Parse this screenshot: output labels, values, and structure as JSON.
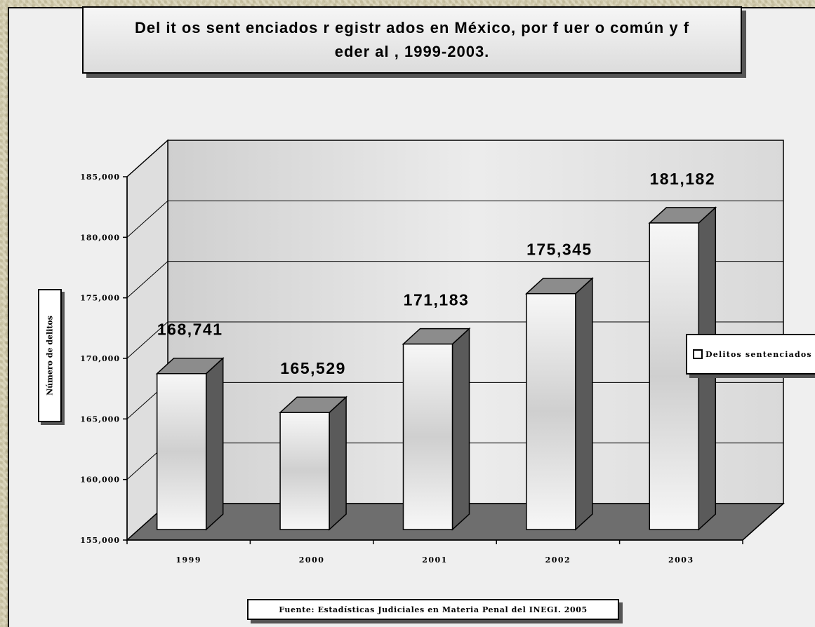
{
  "chart_data": {
    "type": "bar",
    "title": "Del it os sent enciados r egistr ados en México, por f uer o común y f eder al , 1999-2003.",
    "ylabel": "Número de delitos",
    "categories": [
      "1999",
      "2000",
      "2001",
      "2002",
      "2003"
    ],
    "series": [
      {
        "name": "Delitos sentenciados",
        "values": [
          168741,
          165529,
          171183,
          175345,
          181182
        ]
      }
    ],
    "value_labels": [
      "168,741",
      "165,529",
      "171,183",
      "175,345",
      "181,182"
    ],
    "ylim": [
      155000,
      185000
    ],
    "yticks": [
      155000,
      160000,
      165000,
      170000,
      175000,
      180000,
      185000
    ],
    "ytick_labels": [
      "155,000",
      "160,000",
      "165,000",
      "170,000",
      "175,000",
      "180,000",
      "185,000"
    ],
    "grid": true,
    "legend_position": "right",
    "source": "Fuente: Estadísticas Judiciales en Materia Penal del INEGI. 2005",
    "colors": {
      "bar_face": "#f2f2f2",
      "bar_side": "#5a5a5a",
      "bar_top": "#8c8c8c",
      "floor": "#6e6e6e",
      "wall": "#d6d6d6"
    }
  },
  "legend": {
    "label": "Delitos sentenciados"
  }
}
